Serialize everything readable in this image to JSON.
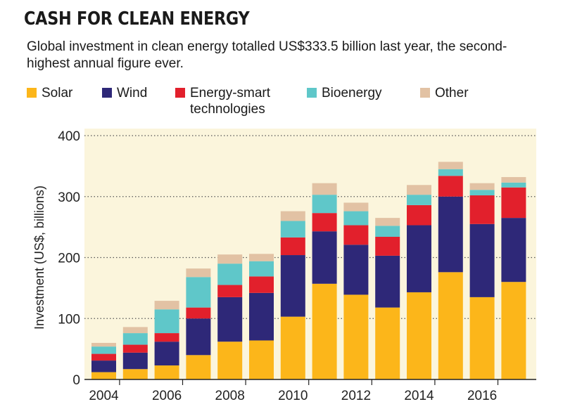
{
  "title": "CASH FOR CLEAN ENERGY",
  "subtitle": "Global investment in clean energy totalled US$333.5 billion last year, the second-highest annual figure ever.",
  "colors": {
    "Solar": "#fcb61a",
    "Wind": "#2e2878",
    "Energy-smart technologies": "#e2202c",
    "Bioenergy": "#5fc7c9",
    "Other": "#e2c2a4",
    "plot_background": "#fbf5dc",
    "gridline": "#555555"
  },
  "legend": [
    {
      "label": "Solar",
      "color": "#fcb61a"
    },
    {
      "label": "Wind",
      "color": "#2e2878"
    },
    {
      "label": "Energy-smart technologies",
      "color": "#e2202c"
    },
    {
      "label": "Bioenergy",
      "color": "#5fc7c9"
    },
    {
      "label": "Other",
      "color": "#e2c2a4"
    }
  ],
  "chart_data": {
    "type": "bar",
    "stacked": true,
    "title": "CASH FOR CLEAN ENERGY",
    "ylabel": "Investment (US$, billions)",
    "xlabel": "",
    "ylim": [
      0,
      400
    ],
    "yticks": [
      0,
      100,
      200,
      300,
      400
    ],
    "xticks": [
      "2004",
      "2006",
      "2008",
      "2010",
      "2012",
      "2014",
      "2016"
    ],
    "grid": "horizontal dotted",
    "categories": [
      "2004",
      "2005",
      "2006",
      "2007",
      "2008",
      "2009",
      "2010",
      "2011",
      "2012",
      "2013",
      "2014",
      "2015",
      "2016",
      "2017"
    ],
    "series": [
      {
        "name": "Solar",
        "values": [
          12,
          17,
          23,
          40,
          62,
          64,
          103,
          157,
          139,
          118,
          143,
          176,
          135,
          160
        ]
      },
      {
        "name": "Wind",
        "values": [
          19,
          27,
          39,
          60,
          73,
          78,
          101,
          86,
          82,
          85,
          110,
          124,
          120,
          105
        ]
      },
      {
        "name": "Energy-smart technologies",
        "values": [
          11,
          13,
          14,
          18,
          20,
          27,
          29,
          30,
          32,
          31,
          33,
          34,
          47,
          50
        ]
      },
      {
        "name": "Bioenergy",
        "values": [
          12,
          19,
          39,
          50,
          35,
          25,
          27,
          30,
          23,
          18,
          17,
          11,
          9,
          8
        ]
      },
      {
        "name": "Other",
        "values": [
          6,
          10,
          14,
          14,
          15,
          12,
          16,
          19,
          14,
          13,
          16,
          12,
          11,
          9
        ]
      }
    ]
  }
}
